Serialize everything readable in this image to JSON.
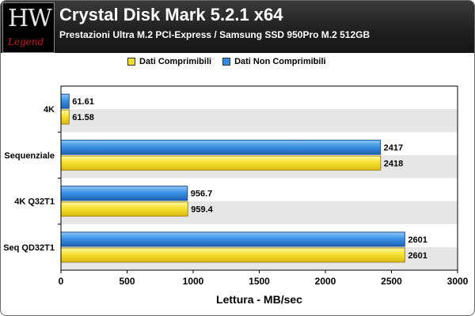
{
  "header": {
    "logo_text": "HW",
    "logo_sub": "Legend",
    "title": "Crystal Disk Mark 5.2.1 x64",
    "subtitle": "Prestazioni Ultra M.2 PCI-Express / Samsung SSD 950Pro M.2 512GB"
  },
  "colors": {
    "compressible": "#f2de2a",
    "non_compressible": "#2f8ce0",
    "band_alt": "#e6e6e6"
  },
  "chart_data": {
    "type": "bar",
    "orientation": "horizontal",
    "title": "Crystal Disk Mark 5.2.1 x64",
    "subtitle": "Prestazioni Ultra M.2 PCI-Express / Samsung SSD 950Pro M.2 512GB",
    "xlabel": "Lettura - MB/sec",
    "ylabel": "",
    "xlim": [
      0,
      3000
    ],
    "xticks": [
      "0",
      "500",
      "1000",
      "1500",
      "2000",
      "2500",
      "3000"
    ],
    "legend_position": "top",
    "categories": [
      "4K",
      "Sequenziale",
      "4K Q32T1",
      "Seq QD32T1"
    ],
    "series": [
      {
        "name": "Dati Non Comprimibili",
        "values": [
          61.61,
          2417,
          956.7,
          2601
        ],
        "labels": [
          "61.61",
          "2417",
          "956.7",
          "2601"
        ]
      },
      {
        "name": "Dati Comprimibili",
        "values": [
          61.58,
          2418,
          959.4,
          2601
        ],
        "labels": [
          "61.58",
          "2418",
          "959.4",
          "2601"
        ]
      }
    ]
  }
}
